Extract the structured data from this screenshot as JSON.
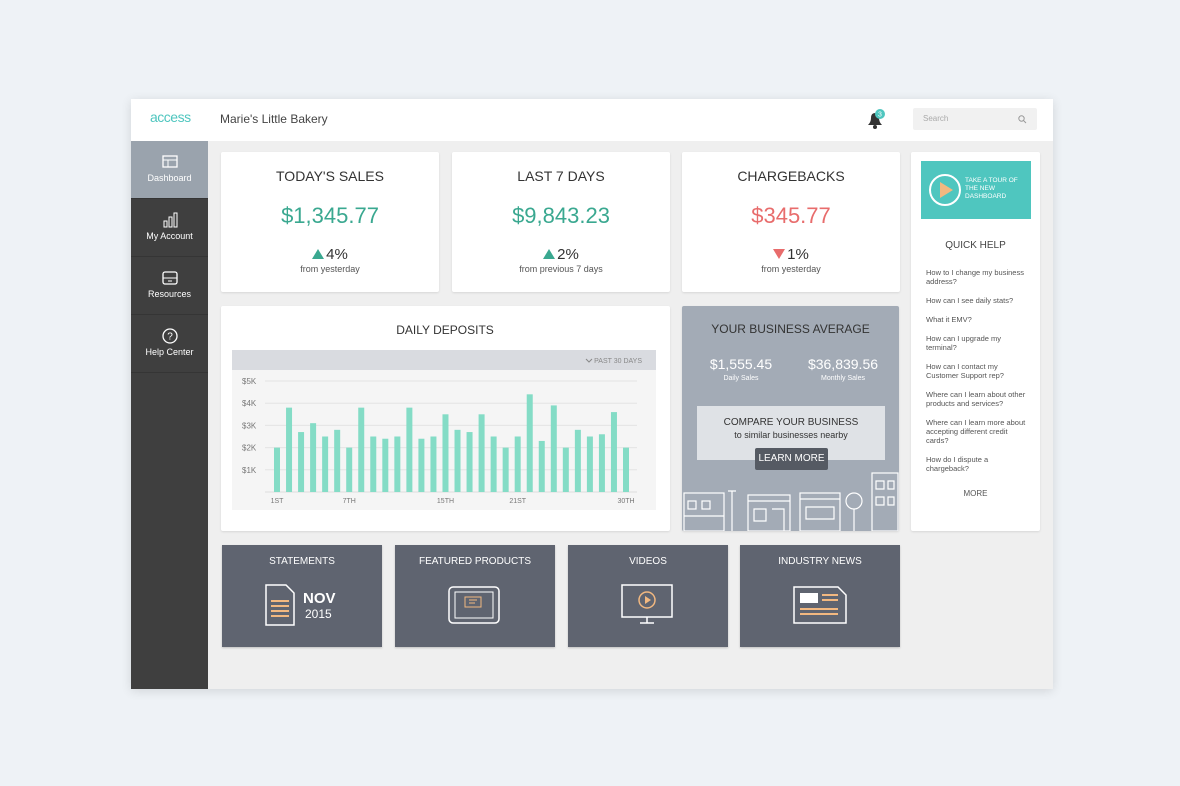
{
  "header": {
    "logo": "access",
    "business": "Marie's Little Bakery",
    "badge": "3",
    "search": "Search"
  },
  "nav": [
    "Dashboard",
    "My Account",
    "Resources",
    "Help Center"
  ],
  "stats": [
    {
      "title": "TODAY'S SALES",
      "amount": "$1,345.77",
      "direction": "up",
      "change": "4%",
      "note": "from yesterday"
    },
    {
      "title": "LAST 7 DAYS",
      "amount": "$9,843.23",
      "direction": "up",
      "change": "2%",
      "note": "from previous 7 days"
    },
    {
      "title": "CHARGEBACKS",
      "amount": "$345.77",
      "direction": "down",
      "change": "1%",
      "note": "from yesterday"
    }
  ],
  "chart_data": {
    "type": "bar",
    "title": "DAILY DEPOSITS",
    "filter": "PAST 30 DAYS",
    "categories": [
      "1ST",
      null,
      null,
      null,
      null,
      null,
      "7TH",
      null,
      null,
      null,
      null,
      null,
      null,
      null,
      "15TH",
      null,
      null,
      null,
      null,
      null,
      "21ST",
      null,
      null,
      null,
      null,
      null,
      null,
      null,
      null,
      "30TH"
    ],
    "values": [
      2000,
      3800,
      2700,
      3100,
      2500,
      2800,
      2000,
      3800,
      2500,
      2400,
      2500,
      3800,
      2400,
      2500,
      3500,
      2800,
      2700,
      3500,
      2500,
      2000,
      2500,
      4400,
      2300,
      3900,
      2000,
      2800,
      2500,
      2600,
      3600,
      2000
    ],
    "color": "#84dcc6",
    "ylim": [
      0,
      5000
    ],
    "yticks": [
      {
        "value": 1000,
        "label": "$1K"
      },
      {
        "value": 2000,
        "label": "$2K"
      },
      {
        "value": 3000,
        "label": "$3K"
      },
      {
        "value": 4000,
        "label": "$4K"
      },
      {
        "value": 5000,
        "label": "$5K"
      }
    ],
    "grid": true
  },
  "average": {
    "title": "YOUR BUSINESS AVERAGE",
    "stats": [
      {
        "value": "$1,555.45",
        "label": "Daily Sales"
      },
      {
        "value": "$36,839.56",
        "label": "Monthly Sales"
      }
    ],
    "compare": {
      "title": "COMPARE YOUR BUSINESS",
      "subtitle": "to similar businesses nearby",
      "button": "LEARN MORE"
    }
  },
  "help": {
    "tour": "TAKE A TOUR OF THE NEW DASHBOARD",
    "title": "QUICK HELP",
    "questions": [
      "How to I change my business address?",
      "How can I see daily stats?",
      "What it EMV?",
      "How can I upgrade my terminal?",
      "How can I contact my Customer Support rep?",
      "Where can I learn about other products and services?",
      "Where can I learn more about accepting different credit cards?",
      "How do I dispute a chargeback?"
    ],
    "more": "MORE"
  },
  "tiles": [
    {
      "title": "STATEMENTS",
      "month": "NOV",
      "year": "2015"
    },
    {
      "title": "FEATURED PRODUCTS"
    },
    {
      "title": "VIDEOS"
    },
    {
      "title": "INDUSTRY NEWS"
    }
  ]
}
